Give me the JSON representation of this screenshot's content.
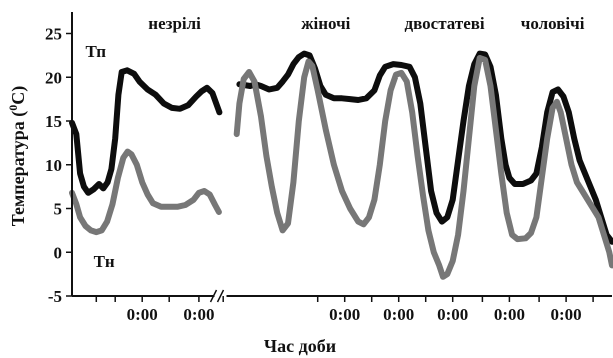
{
  "chart_data": {
    "type": "line",
    "title": "",
    "xlabel": "Час доби",
    "ylabel": "Температура (0C)",
    "ylabel_parts": {
      "before": "Температура (",
      "sup": "0",
      "after": "C)"
    },
    "ylim": [
      -5,
      27
    ],
    "yticks": [
      -5,
      0,
      5,
      10,
      15,
      20,
      25
    ],
    "xlim": [
      0,
      100
    ],
    "xticks": [
      {
        "x": 13,
        "label": "0:00"
      },
      {
        "x": 23.5,
        "label": "0:00"
      },
      {
        "x": 50.5,
        "label": "0:00"
      },
      {
        "x": 60.5,
        "label": "0:00"
      },
      {
        "x": 70.5,
        "label": "0:00"
      },
      {
        "x": 81,
        "label": "0:00"
      },
      {
        "x": 91.5,
        "label": "0:00"
      }
    ],
    "minor_xticks": [
      4.5,
      8,
      18,
      28,
      45.5,
      55.5,
      65.5,
      76,
      86.5,
      96.5,
      101.5
    ],
    "axis_break_x": 27.5,
    "categories": [
      {
        "label": "незрілі",
        "x": 19
      },
      {
        "label": "жіночі",
        "x": 47
      },
      {
        "label": "двостатеві",
        "x": 69
      },
      {
        "label": "чоловічі",
        "x": 89
      }
    ],
    "series_tags": [
      {
        "label": "Тп",
        "x": 2.5,
        "y": 23
      },
      {
        "label": "Тн",
        "x": 4,
        "y": -1
      }
    ],
    "series": [
      {
        "name": "Тп",
        "color": "#0d0d0d",
        "segments": [
          [
            [
              0,
              14.8
            ],
            [
              0.8,
              13.5
            ],
            [
              1.5,
              9
            ],
            [
              2.2,
              7.5
            ],
            [
              3,
              6.8
            ],
            [
              4,
              7.2
            ],
            [
              5,
              7.8
            ],
            [
              5.8,
              7.3
            ],
            [
              6.6,
              8
            ],
            [
              7.3,
              9.5
            ],
            [
              8,
              13
            ],
            [
              8.6,
              18
            ],
            [
              9.2,
              20.6
            ],
            [
              10.2,
              20.8
            ],
            [
              11.5,
              20.4
            ],
            [
              12.5,
              19.5
            ],
            [
              14,
              18.6
            ],
            [
              15.5,
              18
            ],
            [
              17,
              17
            ],
            [
              18.5,
              16.5
            ],
            [
              20,
              16.4
            ],
            [
              21.5,
              16.8
            ],
            [
              23,
              17.8
            ],
            [
              24,
              18.4
            ],
            [
              25,
              18.8
            ],
            [
              26,
              18.2
            ],
            [
              27,
              16.5
            ],
            [
              27.3,
              16
            ]
          ],
          [
            [
              31,
              19.2
            ],
            [
              32,
              19.1
            ],
            [
              33,
              19
            ],
            [
              34,
              19.2
            ],
            [
              35,
              19
            ],
            [
              36.5,
              18.6
            ],
            [
              38,
              18.8
            ],
            [
              39,
              19.5
            ],
            [
              40,
              20.3
            ],
            [
              41,
              21.5
            ],
            [
              42,
              22.3
            ],
            [
              43,
              22.7
            ],
            [
              44,
              22.5
            ],
            [
              45,
              21
            ],
            [
              46,
              19
            ],
            [
              47,
              18
            ],
            [
              48.5,
              17.6
            ],
            [
              50,
              17.6
            ],
            [
              51.5,
              17.5
            ],
            [
              53,
              17.4
            ],
            [
              54.5,
              17.6
            ],
            [
              56,
              18.5
            ],
            [
              57,
              20.2
            ],
            [
              58,
              21.2
            ],
            [
              59.5,
              21.5
            ],
            [
              61,
              21.4
            ],
            [
              62.5,
              21.2
            ],
            [
              63.5,
              20
            ],
            [
              64.5,
              17
            ],
            [
              65.5,
              12
            ],
            [
              66.5,
              7
            ],
            [
              67.5,
              4.5
            ],
            [
              68.5,
              3.5
            ],
            [
              69.5,
              4
            ],
            [
              70.5,
              6
            ],
            [
              71.5,
              10.5
            ],
            [
              72.5,
              15
            ],
            [
              73.5,
              19
            ],
            [
              74.5,
              21.5
            ],
            [
              75.5,
              22.7
            ],
            [
              76.5,
              22.6
            ],
            [
              77.5,
              21.2
            ],
            [
              78.5,
              18
            ],
            [
              79.5,
              13
            ],
            [
              80.3,
              10
            ],
            [
              81,
              8.5
            ],
            [
              82,
              7.8
            ],
            [
              83.5,
              7.8
            ],
            [
              85,
              8.2
            ],
            [
              86,
              9
            ],
            [
              87,
              12
            ],
            [
              88,
              16
            ],
            [
              89,
              18.3
            ],
            [
              90,
              18.6
            ],
            [
              91,
              17.8
            ],
            [
              92,
              16
            ],
            [
              93,
              13
            ],
            [
              94,
              10.5
            ],
            [
              95,
              9
            ],
            [
              96,
              7.5
            ],
            [
              97,
              6
            ],
            [
              98,
              4
            ],
            [
              99,
              2
            ],
            [
              100,
              1.2
            ]
          ]
        ]
      },
      {
        "name": "Тн",
        "color": "#777777",
        "segments": [
          [
            [
              0,
              6.8
            ],
            [
              0.8,
              5.5
            ],
            [
              1.5,
              4
            ],
            [
              2.5,
              3
            ],
            [
              3.5,
              2.5
            ],
            [
              4.5,
              2.3
            ],
            [
              5.5,
              2.5
            ],
            [
              6.5,
              3.5
            ],
            [
              7.5,
              5.5
            ],
            [
              8.5,
              8.5
            ],
            [
              9.5,
              10.8
            ],
            [
              10.3,
              11.5
            ],
            [
              11,
              11.2
            ],
            [
              12,
              10
            ],
            [
              13,
              8
            ],
            [
              14,
              6.6
            ],
            [
              15,
              5.6
            ],
            [
              16.5,
              5.2
            ],
            [
              18,
              5.2
            ],
            [
              19.5,
              5.2
            ],
            [
              21,
              5.4
            ],
            [
              22.5,
              6
            ],
            [
              23.5,
              6.8
            ],
            [
              24.5,
              7
            ],
            [
              25.5,
              6.6
            ],
            [
              26.5,
              5.4
            ],
            [
              27.2,
              4.6
            ]
          ],
          [
            [
              30.5,
              13.5
            ],
            [
              31,
              17
            ],
            [
              31.8,
              19.8
            ],
            [
              32.8,
              20.6
            ],
            [
              33.8,
              19.5
            ],
            [
              35,
              15.5
            ],
            [
              36,
              11
            ],
            [
              37,
              7.5
            ],
            [
              38,
              4.5
            ],
            [
              39,
              2.5
            ],
            [
              40,
              3.3
            ],
            [
              41,
              8
            ],
            [
              42,
              15
            ],
            [
              43,
              20
            ],
            [
              43.8,
              21.8
            ],
            [
              44.5,
              21.3
            ],
            [
              45.5,
              18.5
            ],
            [
              47,
              14
            ],
            [
              48.5,
              10
            ],
            [
              50,
              7
            ],
            [
              51.5,
              5
            ],
            [
              53,
              3.5
            ],
            [
              54,
              3.2
            ],
            [
              55,
              4
            ],
            [
              56,
              6
            ],
            [
              57,
              10
            ],
            [
              58,
              15
            ],
            [
              59,
              18.5
            ],
            [
              60,
              20.3
            ],
            [
              61,
              20.5
            ],
            [
              62,
              19.5
            ],
            [
              63,
              16
            ],
            [
              64,
              11
            ],
            [
              65,
              6.5
            ],
            [
              66,
              2.5
            ],
            [
              67,
              0
            ],
            [
              68,
              -1.5
            ],
            [
              68.7,
              -2.8
            ],
            [
              69.5,
              -2.5
            ],
            [
              70.5,
              -1
            ],
            [
              71.5,
              2
            ],
            [
              72.5,
              7
            ],
            [
              73.5,
              13
            ],
            [
              74.5,
              19
            ],
            [
              75.5,
              22.2
            ],
            [
              76.5,
              22
            ],
            [
              77.5,
              19
            ],
            [
              78.5,
              14
            ],
            [
              79.5,
              9
            ],
            [
              80.5,
              4.5
            ],
            [
              81.5,
              2
            ],
            [
              82.5,
              1.5
            ],
            [
              84,
              1.6
            ],
            [
              85,
              2.2
            ],
            [
              86,
              4
            ],
            [
              87,
              8.5
            ],
            [
              88,
              13
            ],
            [
              89,
              16.5
            ],
            [
              89.8,
              17.2
            ],
            [
              90.5,
              16
            ],
            [
              91.5,
              13
            ],
            [
              92.5,
              10
            ],
            [
              93.5,
              8
            ],
            [
              94.5,
              7
            ],
            [
              95.5,
              6
            ],
            [
              96.5,
              5
            ],
            [
              97.5,
              4
            ],
            [
              98.5,
              2
            ],
            [
              99.5,
              0
            ],
            [
              100,
              -1.5
            ]
          ]
        ]
      }
    ]
  }
}
